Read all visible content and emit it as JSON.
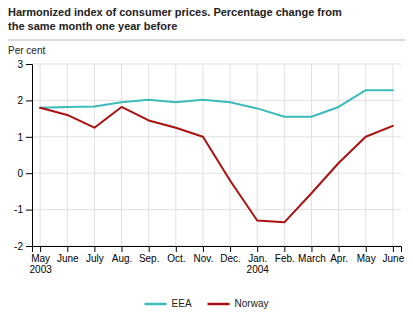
{
  "chart_data": {
    "type": "line",
    "title": "Harmonized index of consumer prices. Percentage change from\nthe same month one year before",
    "y_label": "Per cent",
    "categories": [
      "May\n2003",
      "June",
      "July",
      "Aug.",
      "Sep.",
      "Oct.",
      "Nov.",
      "Dec.",
      "Jan.\n2004",
      "Feb.",
      "March",
      "Apr.",
      "May",
      "June"
    ],
    "series": [
      {
        "name": "EEA",
        "color": "#3DBBBB",
        "values": [
          1.8,
          1.82,
          1.83,
          1.95,
          2.02,
          1.95,
          2.02,
          1.95,
          1.78,
          1.55,
          1.55,
          1.82,
          2.28,
          2.28
        ]
      },
      {
        "name": "Norway",
        "color": "#AA1111",
        "values": [
          1.8,
          1.6,
          1.25,
          1.82,
          1.45,
          1.25,
          1.0,
          -0.2,
          -1.3,
          -1.35,
          -0.55,
          0.28,
          1.0,
          1.3
        ]
      }
    ],
    "ylim": [
      -2,
      3
    ],
    "yticks": [
      -2,
      -1,
      0,
      1,
      2,
      3
    ],
    "grid": true,
    "legend": "bottom"
  }
}
